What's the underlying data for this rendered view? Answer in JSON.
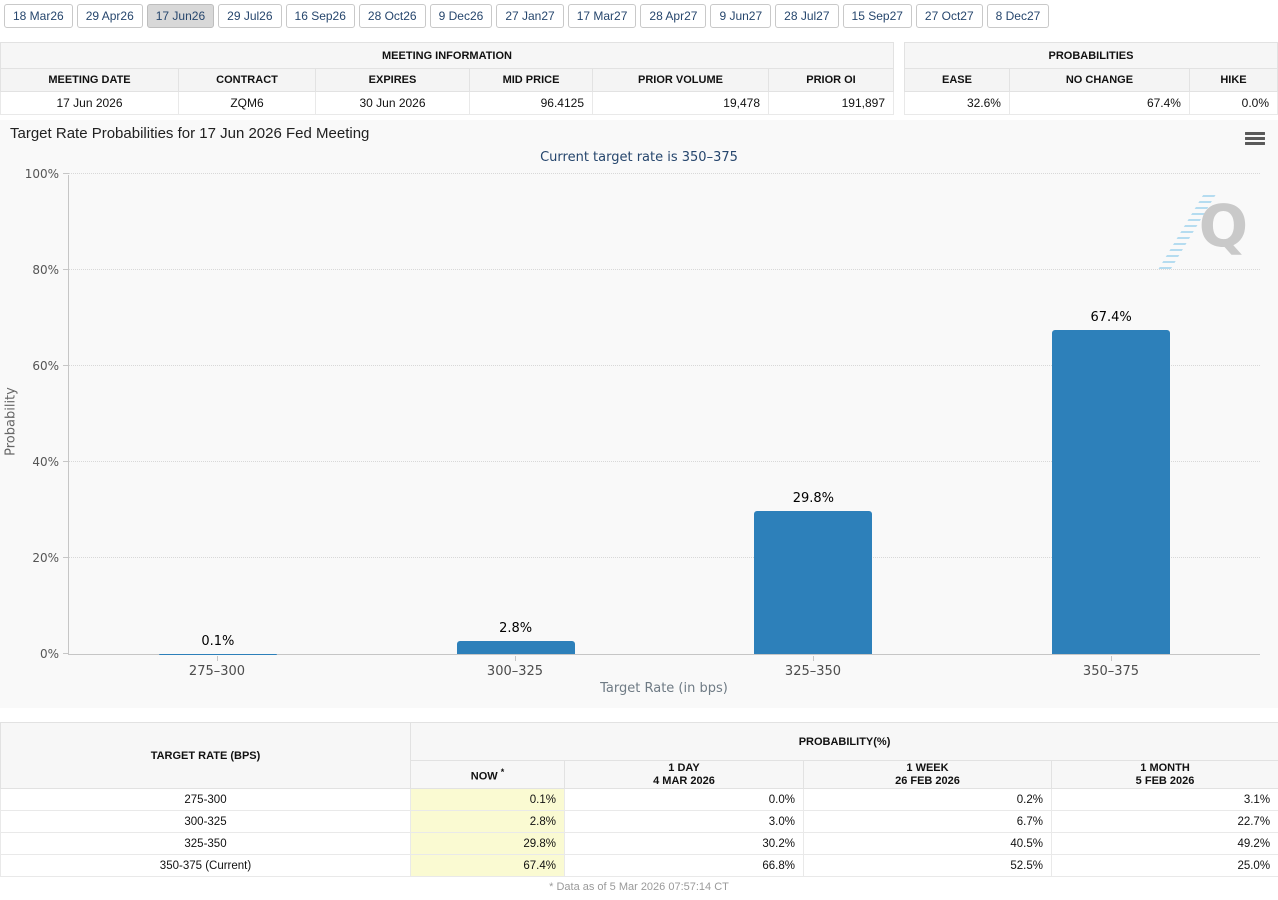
{
  "tabs": {
    "selected_index": 2,
    "items": [
      "18 Mar26",
      "29 Apr26",
      "17 Jun26",
      "29 Jul26",
      "16 Sep26",
      "28 Oct26",
      "9 Dec26",
      "27 Jan27",
      "17 Mar27",
      "28 Apr27",
      "9 Jun27",
      "28 Jul27",
      "15 Sep27",
      "27 Oct27",
      "8 Dec27"
    ]
  },
  "meeting_info": {
    "title": "MEETING INFORMATION",
    "columns": [
      "MEETING DATE",
      "CONTRACT",
      "EXPIRES",
      "MID PRICE",
      "PRIOR VOLUME",
      "PRIOR OI"
    ],
    "values": [
      "17 Jun 2026",
      "ZQM6",
      "30 Jun 2026",
      "96.4125",
      "19,478",
      "191,897"
    ]
  },
  "probabilities": {
    "title": "PROBABILITIES",
    "columns": [
      "EASE",
      "NO CHANGE",
      "HIKE"
    ],
    "values": [
      "32.6%",
      "67.4%",
      "0.0%"
    ]
  },
  "chart_data": {
    "type": "bar",
    "title": "Target Rate Probabilities for 17 Jun 2026 Fed Meeting",
    "subtitle": "Current target rate is 350–375",
    "categories": [
      "275–300",
      "300–325",
      "325–350",
      "350–375"
    ],
    "values": [
      0.1,
      2.8,
      29.8,
      67.4
    ],
    "labels": [
      "0.1%",
      "2.8%",
      "29.8%",
      "67.4%"
    ],
    "xlabel": "Target Rate (in bps)",
    "ylabel": "Probability",
    "ylim": [
      0,
      100
    ],
    "yticks": [
      0,
      20,
      40,
      60,
      80,
      100
    ],
    "bar_color": "#2d80ba",
    "grid": true,
    "legend": false,
    "watermark_letter": "Q"
  },
  "history_table": {
    "header_left": "TARGET RATE (BPS)",
    "group_header": "PROBABILITY(%)",
    "columns": [
      {
        "top": "NOW",
        "sup": "*",
        "bottom": ""
      },
      {
        "top": "1 DAY",
        "sup": "",
        "bottom": "4 MAR 2026"
      },
      {
        "top": "1 WEEK",
        "sup": "",
        "bottom": "26 FEB 2026"
      },
      {
        "top": "1 MONTH",
        "sup": "",
        "bottom": "5 FEB 2026"
      }
    ],
    "rows": [
      [
        "275-300",
        "0.1%",
        "0.0%",
        "0.2%",
        "3.1%"
      ],
      [
        "300-325",
        "2.8%",
        "3.0%",
        "6.7%",
        "22.7%"
      ],
      [
        "325-350",
        "29.8%",
        "30.2%",
        "40.5%",
        "49.2%"
      ],
      [
        "350-375 (Current)",
        "67.4%",
        "66.8%",
        "52.5%",
        "25.0%"
      ]
    ]
  },
  "footer": {
    "note": "* Data as of 5 Mar 2026 07:57:14 CT"
  },
  "colors": {
    "bar": "#2d80ba",
    "now_column_highlight": "#fafad2",
    "tab_text": "#26466d",
    "subtitle_text": "#26466d",
    "chart_background": "#f9f9f9"
  }
}
